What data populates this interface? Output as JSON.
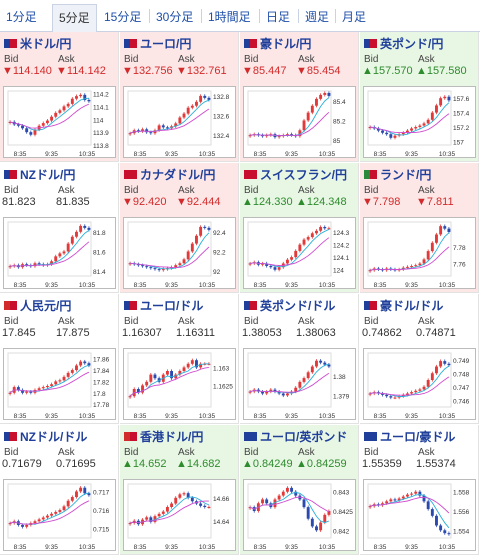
{
  "tabs": [
    {
      "label": "1分足",
      "active": false
    },
    {
      "label": "5分足",
      "active": true
    },
    {
      "label": "15分足",
      "active": false
    },
    {
      "label": "30分足",
      "active": false
    },
    {
      "label": "1時間足",
      "active": false
    },
    {
      "label": "日足",
      "active": false
    },
    {
      "label": "週足",
      "active": false
    },
    {
      "label": "月足",
      "active": false
    }
  ],
  "labels": {
    "bid": "Bid",
    "ask": "Ask"
  },
  "colors": {
    "up": "#2e8b2e",
    "down": "#d22b2b",
    "up_bg": "#e8f7e4",
    "down_bg": "#fde6e6",
    "candle_up": "#e23a3a",
    "candle_down": "#2a4ab0",
    "ma1": "#d04ad0",
    "ma2": "#2ab0d8"
  },
  "pairs": [
    {
      "name": "米ドル/円",
      "flags": [
        "#1f3f9a",
        "#c8102e"
      ],
      "dir": "down",
      "bid": "▼114.140",
      "ask": "▼114.142",
      "chart_data": {
        "type": "candlestick",
        "yticks": [
          "114.2",
          "114.1",
          "114",
          "113.9",
          "113.8"
        ],
        "ylim": [
          113.8,
          114.22
        ],
        "xticks": [
          "8:35",
          "9:35",
          "10:35"
        ],
        "close": [
          113.98,
          113.96,
          113.95,
          113.93,
          113.9,
          113.88,
          113.92,
          113.95,
          113.97,
          113.99,
          114.02,
          114.05,
          114.07,
          114.1,
          114.12,
          114.16,
          114.18,
          114.19,
          114.15,
          114.14
        ]
      }
    },
    {
      "name": "ユーロ/円",
      "flags": [
        "#1f3f9a",
        "#c8102e"
      ],
      "dir": "down",
      "bid": "▼132.756",
      "ask": "▼132.761",
      "chart_data": {
        "type": "candlestick",
        "yticks": [
          "132.8",
          "132.6",
          "132.4"
        ],
        "ylim": [
          132.3,
          132.85
        ],
        "xticks": [
          "8:35",
          "9:35",
          "10:35"
        ],
        "close": [
          132.42,
          132.45,
          132.44,
          132.46,
          132.43,
          132.42,
          132.45,
          132.5,
          132.48,
          132.47,
          132.49,
          132.52,
          132.58,
          132.62,
          132.68,
          132.7,
          132.74,
          132.8,
          132.78,
          132.76
        ]
      }
    },
    {
      "name": "豪ドル/円",
      "flags": [
        "#1f3f9a",
        "#c8102e"
      ],
      "dir": "down",
      "bid": "▼85.447",
      "ask": "▼85.454",
      "chart_data": {
        "type": "candlestick",
        "yticks": [
          "85.4",
          "85.2",
          "85"
        ],
        "ylim": [
          84.95,
          85.5
        ],
        "xticks": [
          "8:35",
          "9:35",
          "10:35"
        ],
        "close": [
          85.05,
          85.06,
          85.05,
          85.04,
          85.05,
          85.06,
          85.03,
          85.04,
          85.05,
          85.06,
          85.05,
          85.04,
          85.1,
          85.2,
          85.28,
          85.35,
          85.42,
          85.46,
          85.48,
          85.45
        ]
      }
    },
    {
      "name": "英ポンド/円",
      "flags": [
        "#1f3f9a",
        "#c8102e"
      ],
      "dir": "up",
      "bid": "▲157.570",
      "ask": "▲157.580",
      "chart_data": {
        "type": "candlestick",
        "yticks": [
          "157.6",
          "157.4",
          "157.2",
          "157"
        ],
        "ylim": [
          156.95,
          157.7
        ],
        "xticks": [
          "8:35",
          "9:35",
          "10:35"
        ],
        "close": [
          157.2,
          157.18,
          157.15,
          157.12,
          157.1,
          157.05,
          157.08,
          157.1,
          157.12,
          157.15,
          157.18,
          157.2,
          157.22,
          157.25,
          157.3,
          157.4,
          157.5,
          157.6,
          157.62,
          157.57
        ]
      }
    },
    {
      "name": "NZドル/円",
      "flags": [
        "#1f3f9a",
        "#c8102e"
      ],
      "dir": "flat",
      "bid": "81.823",
      "ask": "81.835",
      "chart_data": {
        "type": "candlestick",
        "yticks": [
          "81.8",
          "81.6",
          "81.4"
        ],
        "ylim": [
          81.35,
          81.9
        ],
        "xticks": [
          "8:35",
          "9:35",
          "10:35"
        ],
        "close": [
          81.45,
          81.46,
          81.44,
          81.47,
          81.46,
          81.45,
          81.48,
          81.47,
          81.46,
          81.47,
          81.5,
          81.55,
          81.58,
          81.6,
          81.68,
          81.75,
          81.8,
          81.86,
          81.84,
          81.82
        ]
      }
    },
    {
      "name": "カナダドル/円",
      "flags": [
        "#c8102e",
        "#c8102e"
      ],
      "dir": "down",
      "bid": "▼92.420",
      "ask": "▼92.444",
      "chart_data": {
        "type": "candlestick",
        "yticks": [
          "92.4",
          "92.2",
          "92"
        ],
        "ylim": [
          91.95,
          92.5
        ],
        "xticks": [
          "8:35",
          "9:35",
          "10:35"
        ],
        "close": [
          92.08,
          92.07,
          92.06,
          92.05,
          92.04,
          92.03,
          92.02,
          92.01,
          92.02,
          92.03,
          92.04,
          92.06,
          92.08,
          92.12,
          92.2,
          92.28,
          92.36,
          92.45,
          92.44,
          92.42
        ]
      }
    },
    {
      "name": "スイスフラン/円",
      "flags": [
        "#c8102e",
        "#c8102e"
      ],
      "dir": "up",
      "bid": "▲124.330",
      "ask": "▲124.348",
      "chart_data": {
        "type": "candlestick",
        "yticks": [
          "124.3",
          "124.2",
          "124.1",
          "124"
        ],
        "ylim": [
          123.95,
          124.38
        ],
        "xticks": [
          "8:35",
          "9:35",
          "10:35"
        ],
        "close": [
          124.05,
          124.06,
          124.04,
          124.05,
          124.03,
          124.02,
          124.0,
          124.02,
          124.05,
          124.08,
          124.1,
          124.15,
          124.2,
          124.24,
          124.26,
          124.29,
          124.31,
          124.34,
          124.33,
          124.33
        ]
      }
    },
    {
      "name": "ランド/円",
      "flags": [
        "#2a8a3a",
        "#c8102e"
      ],
      "dir": "down",
      "bid": "▼7.798",
      "ask": "▼7.811",
      "chart_data": {
        "type": "candlestick",
        "yticks": [
          "7.78",
          "7.76"
        ],
        "ylim": [
          7.745,
          7.81
        ],
        "xticks": [
          "8:35",
          "9:35",
          "10:35"
        ],
        "close": [
          7.752,
          7.754,
          7.753,
          7.752,
          7.754,
          7.753,
          7.752,
          7.753,
          7.755,
          7.756,
          7.757,
          7.758,
          7.76,
          7.765,
          7.775,
          7.785,
          7.795,
          7.805,
          7.802,
          7.798
        ]
      }
    },
    {
      "name": "人民元/円",
      "flags": [
        "#d22b2b",
        "#c8102e"
      ],
      "dir": "flat",
      "bid": "17.845",
      "ask": "17.875",
      "chart_data": {
        "type": "candlestick",
        "yticks": [
          "17.86",
          "17.84",
          "17.82",
          "17.8",
          "17.78"
        ],
        "ylim": [
          17.775,
          17.87
        ],
        "xticks": [
          "8:35",
          "9:35",
          "10:35"
        ],
        "close": [
          17.8,
          17.81,
          17.805,
          17.8,
          17.802,
          17.8,
          17.805,
          17.808,
          17.81,
          17.812,
          17.815,
          17.82,
          17.822,
          17.828,
          17.835,
          17.84,
          17.848,
          17.855,
          17.852,
          17.848
        ]
      }
    },
    {
      "name": "ユーロ/ドル",
      "flags": [
        "#1f3f9a",
        "#c8102e"
      ],
      "dir": "flat",
      "bid": "1.16307",
      "ask": "1.16311",
      "chart_data": {
        "type": "candlestick",
        "yticks": [
          "1.163",
          "1.1625"
        ],
        "ylim": [
          1.1619,
          1.1634
        ],
        "xticks": [
          "8:35",
          "9:35",
          "10:35"
        ],
        "close": [
          1.1622,
          1.1624,
          1.1623,
          1.1625,
          1.1626,
          1.1628,
          1.1627,
          1.1626,
          1.1628,
          1.1629,
          1.1627,
          1.1628,
          1.1629,
          1.163,
          1.1631,
          1.1632,
          1.163,
          1.1631,
          1.1631,
          1.1631
        ]
      }
    },
    {
      "name": "英ポンド/ドル",
      "flags": [
        "#1f3f9a",
        "#c8102e"
      ],
      "dir": "flat",
      "bid": "1.38053",
      "ask": "1.38063",
      "chart_data": {
        "type": "candlestick",
        "yticks": [
          "1.38",
          "1.379"
        ],
        "ylim": [
          1.3784,
          1.3812
        ],
        "xticks": [
          "8:35",
          "9:35",
          "10:35"
        ],
        "close": [
          1.3792,
          1.3793,
          1.3792,
          1.3791,
          1.3792,
          1.3793,
          1.3792,
          1.3791,
          1.379,
          1.3791,
          1.3792,
          1.3794,
          1.3797,
          1.3799,
          1.3802,
          1.3805,
          1.3808,
          1.3807,
          1.3806,
          1.3805
        ]
      }
    },
    {
      "name": "豪ドル/ドル",
      "flags": [
        "#1f3f9a",
        "#c8102e"
      ],
      "dir": "flat",
      "bid": "0.74862",
      "ask": "0.74871",
      "chart_data": {
        "type": "candlestick",
        "yticks": [
          "0.749",
          "0.748",
          "0.747",
          "0.746"
        ],
        "ylim": [
          0.7455,
          0.7495
        ],
        "xticks": [
          "8:35",
          "9:35",
          "10:35"
        ],
        "close": [
          0.7465,
          0.7466,
          0.7465,
          0.7464,
          0.7463,
          0.7462,
          0.7462,
          0.7463,
          0.7464,
          0.7465,
          0.7466,
          0.7467,
          0.7468,
          0.747,
          0.7475,
          0.748,
          0.7485,
          0.7489,
          0.7487,
          0.7486
        ]
      }
    },
    {
      "name": "NZドル/ドル",
      "flags": [
        "#1f3f9a",
        "#c8102e"
      ],
      "dir": "flat",
      "bid": "0.71679",
      "ask": "0.71695",
      "chart_data": {
        "type": "candlestick",
        "yticks": [
          "0.717",
          "0.716",
          "0.715"
        ],
        "ylim": [
          0.7145,
          0.7174
        ],
        "xticks": [
          "8:35",
          "9:35",
          "10:35"
        ],
        "close": [
          0.7153,
          0.7154,
          0.7152,
          0.7151,
          0.7152,
          0.7153,
          0.7154,
          0.7155,
          0.7156,
          0.7157,
          0.7158,
          0.7159,
          0.716,
          0.7162,
          0.7165,
          0.7167,
          0.717,
          0.7172,
          0.7169,
          0.7168
        ]
      }
    },
    {
      "name": "香港ドル/円",
      "flags": [
        "#d22b2b",
        "#c8102e"
      ],
      "dir": "up",
      "bid": "▲14.652",
      "ask": "▲14.682",
      "chart_data": {
        "type": "candlestick",
        "yticks": [
          "14.66",
          "14.64"
        ],
        "ylim": [
          14.625,
          14.672
        ],
        "xticks": [
          "8:35",
          "9:35",
          "10:35"
        ],
        "close": [
          14.638,
          14.64,
          14.637,
          14.641,
          14.643,
          14.639,
          14.644,
          14.646,
          14.648,
          14.652,
          14.655,
          14.66,
          14.663,
          14.664,
          14.66,
          14.657,
          14.655,
          14.653,
          14.652,
          14.652
        ]
      }
    },
    {
      "name": "ユーロ/英ポンド",
      "flags": [
        "#1f3f9a",
        "#1f3f9a"
      ],
      "dir": "up",
      "bid": "▲0.84249",
      "ask": "▲0.84259",
      "chart_data": {
        "type": "candlestick",
        "yticks": [
          "0.843",
          "0.8425",
          "0.842"
        ],
        "ylim": [
          0.8418,
          0.8432
        ],
        "xticks": [
          "8:35",
          "9:35",
          "10:35"
        ],
        "close": [
          0.8426,
          0.8425,
          0.8427,
          0.8428,
          0.8427,
          0.8426,
          0.8428,
          0.8429,
          0.843,
          0.8431,
          0.843,
          0.8429,
          0.8428,
          0.8426,
          0.8423,
          0.8421,
          0.842,
          0.8422,
          0.8424,
          0.8425
        ]
      }
    },
    {
      "name": "ユーロ/豪ドル",
      "flags": [
        "#1f3f9a",
        "#1f3f9a"
      ],
      "dir": "flat",
      "bid": "1.55359",
      "ask": "1.55374",
      "chart_data": {
        "type": "candlestick",
        "yticks": [
          "1.558",
          "1.556",
          "1.554"
        ],
        "ylim": [
          1.5532,
          1.5588
        ],
        "xticks": [
          "8:35",
          "9:35",
          "10:35"
        ],
        "close": [
          1.5565,
          1.5567,
          1.5566,
          1.5568,
          1.557,
          1.5572,
          1.5571,
          1.5573,
          1.5575,
          1.5577,
          1.5578,
          1.558,
          1.5576,
          1.557,
          1.5562,
          1.5555,
          1.5545,
          1.554,
          1.5537,
          1.5536
        ]
      }
    }
  ]
}
